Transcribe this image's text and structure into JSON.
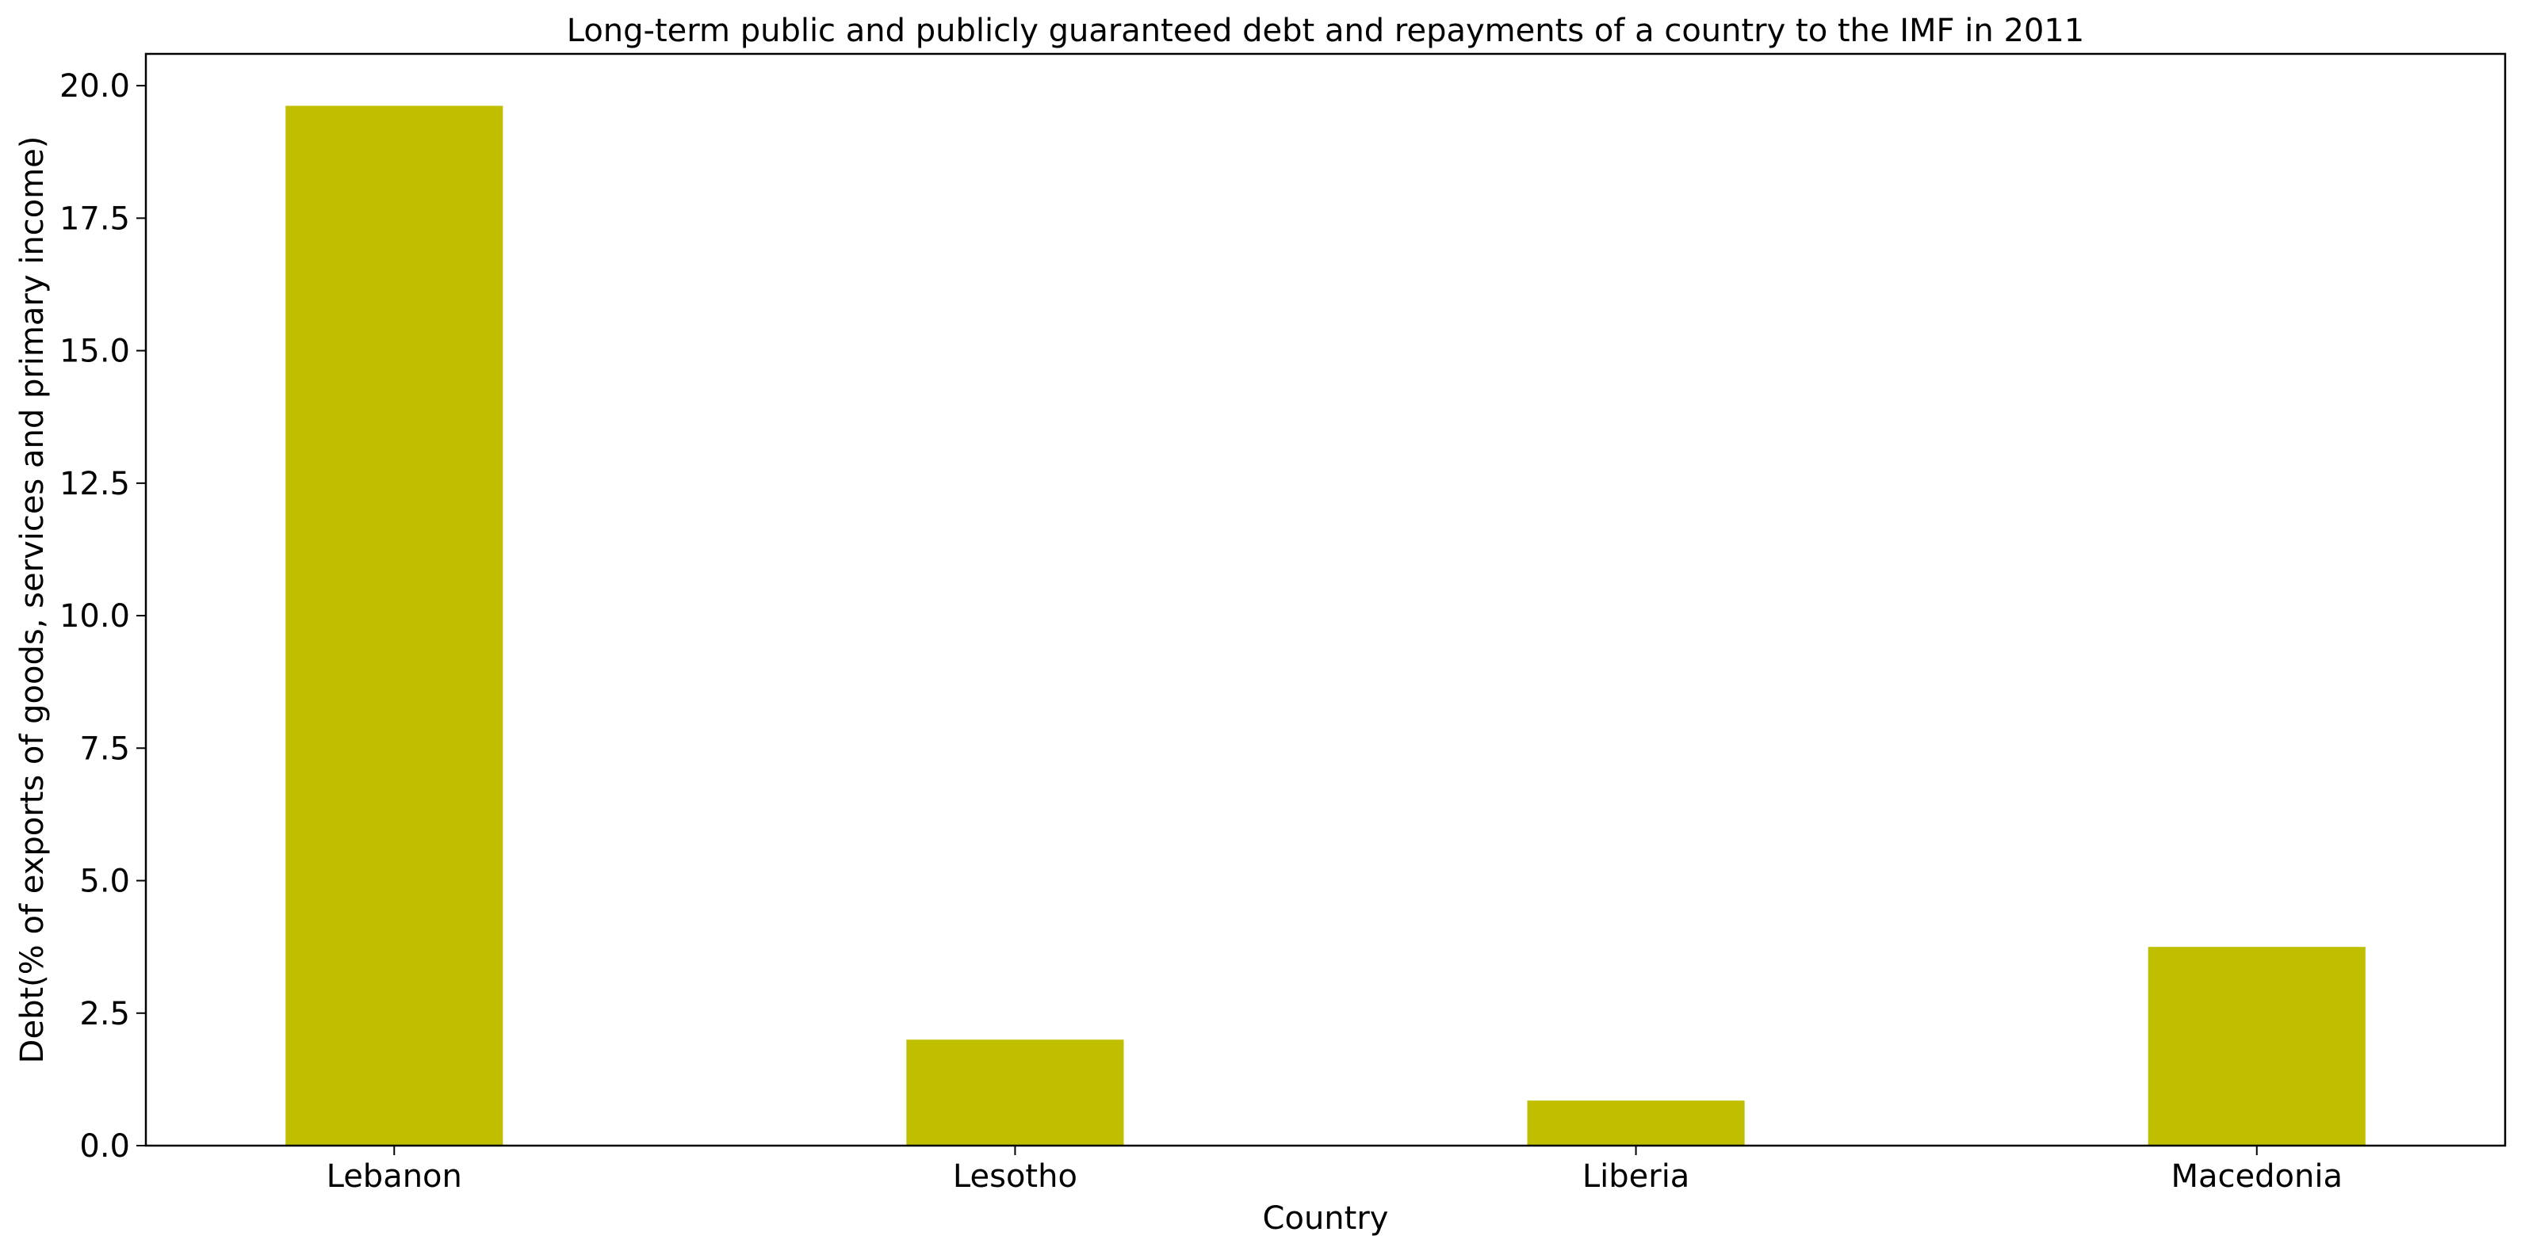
{
  "chart_data": {
    "type": "bar",
    "title": "Long-term public and publicly guaranteed debt and repayments of a country to the IMF in 2011",
    "xlabel": "Country",
    "ylabel": "Debt(% of exports of goods, services and primary income)",
    "categories": [
      "Lebanon",
      "Lesotho",
      "Liberia",
      "Macedonia"
    ],
    "values": [
      19.62,
      2.0,
      0.85,
      3.75
    ],
    "ylim": [
      0,
      20.6
    ],
    "yticks": [
      "0.0",
      "2.5",
      "5.0",
      "7.5",
      "10.0",
      "12.5",
      "15.0",
      "17.5",
      "20.0"
    ],
    "bar_color": "#bfbf00",
    "grid": false,
    "legend": "none"
  }
}
